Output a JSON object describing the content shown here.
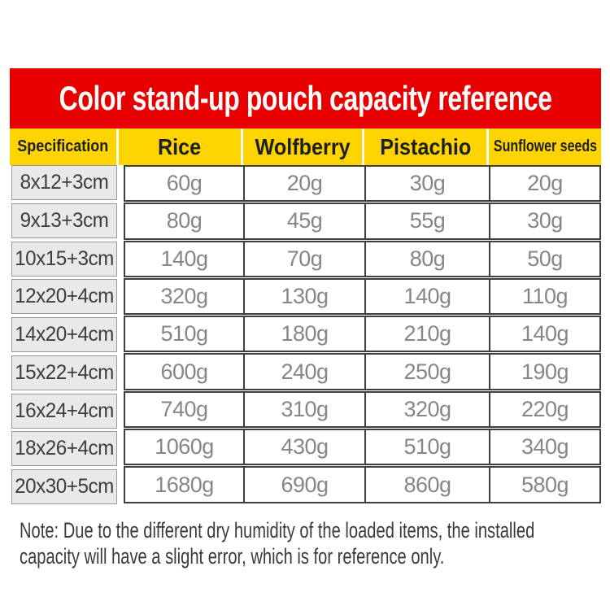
{
  "title": "Color stand-up pouch capacity reference",
  "chart_data": {
    "type": "table",
    "title": "Color stand-up pouch capacity reference",
    "columns": [
      "Specification",
      "Rice",
      "Wolfberry",
      "Pistachio",
      "Sunflower seeds"
    ],
    "rows": [
      [
        "8x12+3cm",
        "60g",
        "20g",
        "30g",
        "20g"
      ],
      [
        "9x13+3cm",
        "80g",
        "45g",
        "55g",
        "30g"
      ],
      [
        "10x15+3cm",
        "140g",
        "70g",
        "80g",
        "50g"
      ],
      [
        "12x20+4cm",
        "320g",
        "130g",
        "140g",
        "110g"
      ],
      [
        "14x20+4cm",
        "510g",
        "180g",
        "210g",
        "140g"
      ],
      [
        "15x22+4cm",
        "600g",
        "240g",
        "250g",
        "190g"
      ],
      [
        "16x24+4cm",
        "740g",
        "310g",
        "320g",
        "220g"
      ],
      [
        "18x26+4cm",
        "1060g",
        "430g",
        "510g",
        "340g"
      ],
      [
        "20x30+5cm",
        "1680g",
        "690g",
        "860g",
        "580g"
      ]
    ],
    "layout": {
      "header_style": "yellow-band",
      "spec_column_style": "gray-chips",
      "grid": "dark-borders"
    }
  },
  "note": {
    "lines": [
      "Note: Due to the different dry humidity of the loaded items, the installed",
      "capacity will have a slight error, which is for reference only."
    ]
  },
  "colors": {
    "banner_red": "#e80000",
    "header_yellow": "#fdd400",
    "header_divider": "#fffdf2",
    "table_border": "#3e3e3e",
    "spec_cell_bg": "#e9e9e9",
    "spec_cell_border": "#979797",
    "value_text": "#868686",
    "note_text": "#3b3b3b"
  }
}
